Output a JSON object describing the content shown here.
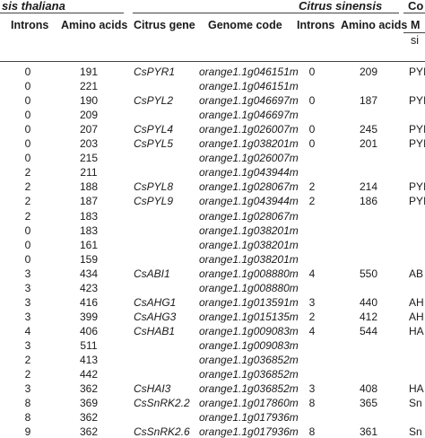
{
  "group_headers": {
    "left": "sis thaliana",
    "right": "Citrus sinensis",
    "far_right": "Co"
  },
  "columns": {
    "introns_at": "Introns",
    "amino_acids_at": "Amino acids",
    "citrus_gene": "Citrus gene",
    "genome_code": "Genome code",
    "introns_cs": "Introns",
    "amino_acids_cs": "Amino acids",
    "sub_m": "M",
    "sub_si": "si"
  },
  "rows": [
    {
      "at_introns": "0",
      "at_aa": "191",
      "gene": "CsPYR1",
      "code": "orange1.1g046151m",
      "cs_introns": "0",
      "cs_aa": "209",
      "cmp": "PYI"
    },
    {
      "at_introns": "0",
      "at_aa": "221",
      "gene": "",
      "code": "orange1.1g046151m",
      "cs_introns": "",
      "cs_aa": "",
      "cmp": ""
    },
    {
      "at_introns": "0",
      "at_aa": "190",
      "gene": "CsPYL2",
      "code": "orange1.1g046697m",
      "cs_introns": "0",
      "cs_aa": "187",
      "cmp": "PYI"
    },
    {
      "at_introns": "0",
      "at_aa": "209",
      "gene": "",
      "code": "orange1.1g046697m",
      "cs_introns": "",
      "cs_aa": "",
      "cmp": ""
    },
    {
      "at_introns": "0",
      "at_aa": "207",
      "gene": "CsPYL4",
      "code": "orange1.1g026007m",
      "cs_introns": "0",
      "cs_aa": "245",
      "cmp": "PYI"
    },
    {
      "at_introns": "0",
      "at_aa": "203",
      "gene": "CsPYL5",
      "code": "orange1.1g038201m",
      "cs_introns": "0",
      "cs_aa": "201",
      "cmp": "PYI"
    },
    {
      "at_introns": "0",
      "at_aa": "215",
      "gene": "",
      "code": "orange1.1g026007m",
      "cs_introns": "",
      "cs_aa": "",
      "cmp": ""
    },
    {
      "at_introns": "2",
      "at_aa": "211",
      "gene": "",
      "code": "orange1.1g043944m",
      "cs_introns": "",
      "cs_aa": "",
      "cmp": ""
    },
    {
      "at_introns": "2",
      "at_aa": "188",
      "gene": "CsPYL8",
      "code": "orange1.1g028067m",
      "cs_introns": "2",
      "cs_aa": "214",
      "cmp": "PYI"
    },
    {
      "at_introns": "2",
      "at_aa": "187",
      "gene": "CsPYL9",
      "code": "orange1.1g043944m",
      "cs_introns": "2",
      "cs_aa": "186",
      "cmp": "PYI"
    },
    {
      "at_introns": "2",
      "at_aa": "183",
      "gene": "",
      "code": "orange1.1g028067m",
      "cs_introns": "",
      "cs_aa": "",
      "cmp": ""
    },
    {
      "at_introns": "0",
      "at_aa": "183",
      "gene": "",
      "code": "orange1.1g038201m",
      "cs_introns": "",
      "cs_aa": "",
      "cmp": ""
    },
    {
      "at_introns": "0",
      "at_aa": "161",
      "gene": "",
      "code": "orange1.1g038201m",
      "cs_introns": "",
      "cs_aa": "",
      "cmp": ""
    },
    {
      "at_introns": "0",
      "at_aa": "159",
      "gene": "",
      "code": "orange1.1g038201m",
      "cs_introns": "",
      "cs_aa": "",
      "cmp": ""
    },
    {
      "at_introns": "3",
      "at_aa": "434",
      "gene": "CsABI1",
      "code": "orange1.1g008880m",
      "cs_introns": "4",
      "cs_aa": "550",
      "cmp": "AB"
    },
    {
      "at_introns": "3",
      "at_aa": "423",
      "gene": "",
      "code": "orange1.1g008880m",
      "cs_introns": "",
      "cs_aa": "",
      "cmp": ""
    },
    {
      "at_introns": "3",
      "at_aa": "416",
      "gene": "CsAHG1",
      "code": "orange1.1g013591m",
      "cs_introns": "3",
      "cs_aa": "440",
      "cmp": "AH"
    },
    {
      "at_introns": "3",
      "at_aa": "399",
      "gene": "CsAHG3",
      "code": "orange1.1g015135m",
      "cs_introns": "2",
      "cs_aa": "412",
      "cmp": "AH"
    },
    {
      "at_introns": "4",
      "at_aa": "406",
      "gene": "CsHAB1",
      "code": "orange1.1g009083m",
      "cs_introns": "4",
      "cs_aa": "544",
      "cmp": "HA"
    },
    {
      "at_introns": "3",
      "at_aa": "511",
      "gene": "",
      "code": "orange1.1g009083m",
      "cs_introns": "",
      "cs_aa": "",
      "cmp": ""
    },
    {
      "at_introns": "2",
      "at_aa": "413",
      "gene": "",
      "code": "orange1.1g036852m",
      "cs_introns": "",
      "cs_aa": "",
      "cmp": ""
    },
    {
      "at_introns": "2",
      "at_aa": "442",
      "gene": "",
      "code": "orange1.1g036852m",
      "cs_introns": "",
      "cs_aa": "",
      "cmp": ""
    },
    {
      "at_introns": "3",
      "at_aa": "362",
      "gene": "CsHAI3",
      "code": "orange1.1g036852m",
      "cs_introns": "3",
      "cs_aa": "408",
      "cmp": "HA"
    },
    {
      "at_introns": "8",
      "at_aa": "369",
      "gene": "CsSnRK2.2",
      "code": "orange1.1g017860m",
      "cs_introns": "8",
      "cs_aa": "365",
      "cmp": "Sn"
    },
    {
      "at_introns": "8",
      "at_aa": "362",
      "gene": "",
      "code": "orange1.1g017936m",
      "cs_introns": "",
      "cs_aa": "",
      "cmp": ""
    },
    {
      "at_introns": "9",
      "at_aa": "362",
      "gene": "CsSnRK2.6",
      "code": "orange1.1g017936m",
      "cs_introns": "8",
      "cs_aa": "361",
      "cmp": "Sn"
    }
  ]
}
